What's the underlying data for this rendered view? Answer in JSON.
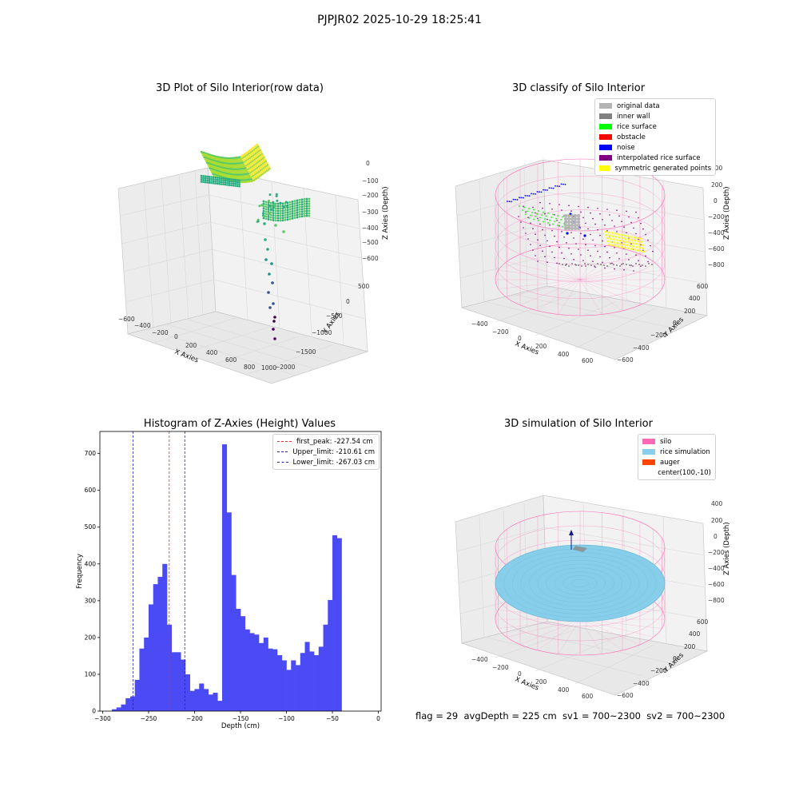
{
  "suptitle": "PJPJR02 2025-10-29 18:25:41",
  "footer": "flag = 29  avgDepth = 225 cm  sv1 = 700~2300  sv2 = 700~2300",
  "colors": {
    "hist_bar": "#4b4bf5",
    "first_peak": "#e03030",
    "limits": "#2020b0",
    "silo": "#ff69b4",
    "rice_simulation": "#87ceeb",
    "auger": "#ff4500"
  },
  "chart_data": [
    {
      "type": "scatter3d",
      "title": "3D Plot of Silo Interior(row data)",
      "xlabel": "X Axies",
      "ylabel": "Y Axies",
      "zlabel": "Z Axies (Depth)",
      "xticks": [
        "−600",
        "−400",
        "−200",
        "0",
        "200",
        "400",
        "600",
        "800",
        "1000"
      ],
      "yticks": [
        "−2000",
        "−1500",
        "−1000",
        "−500",
        "0",
        "500"
      ],
      "zticks": [
        "0",
        "−100",
        "−200",
        "−300",
        "−400",
        "−500",
        "−600"
      ],
      "colormap": "viridis"
    },
    {
      "type": "scatter3d",
      "title": "3D classify of Silo Interior",
      "xlabel": "X Axies",
      "ylabel": "Y Axies",
      "zlabel": "Z Axies (Depth)",
      "xticks": [
        "−400",
        "−200",
        "0",
        "200",
        "400",
        "600"
      ],
      "yticks": [
        "−600",
        "−400",
        "−200",
        "0",
        "200",
        "400",
        "600"
      ],
      "zticks": [
        "400",
        "200",
        "0",
        "−200",
        "−400",
        "−600",
        "−800"
      ],
      "legend": [
        {
          "label": "original data",
          "color": "#b4b4b4"
        },
        {
          "label": "inner wall",
          "color": "#808080"
        },
        {
          "label": "rice surface",
          "color": "#00ff00"
        },
        {
          "label": "obstacle",
          "color": "#ff0000"
        },
        {
          "label": "noise",
          "color": "#0000ff"
        },
        {
          "label": "interpolated rice surface",
          "color": "#800080"
        },
        {
          "label": "symmetric generated points",
          "color": "#ffff00"
        }
      ]
    },
    {
      "type": "bar",
      "title": "Histogram of Z-Axies (Height) Values",
      "xlabel": "Depth (cm)",
      "ylabel": "Frequency",
      "xlim": [
        -303,
        3
      ],
      "ylim": [
        0,
        760
      ],
      "xticks": [
        -300,
        -250,
        -200,
        -150,
        -100,
        -50,
        0
      ],
      "yticks": [
        0,
        100,
        200,
        300,
        400,
        500,
        600,
        700
      ],
      "bin_start": -290,
      "bin_width": 5,
      "values": [
        5,
        10,
        18,
        35,
        40,
        85,
        170,
        200,
        290,
        345,
        365,
        400,
        235,
        160,
        160,
        140,
        100,
        55,
        60,
        75,
        60,
        45,
        50,
        28,
        725,
        540,
        370,
        278,
        258,
        222,
        212,
        208,
        185,
        200,
        170,
        168,
        152,
        138,
        112,
        138,
        125,
        158,
        188,
        162,
        152,
        175,
        235,
        302,
        478,
        470
      ],
      "vlines": [
        {
          "label": "first_peak: -227.54 cm",
          "x": -227.54,
          "color": "#e03030"
        },
        {
          "label": "Upper_limit: -210.61 cm",
          "x": -210.61,
          "color": "#2020b0"
        },
        {
          "label": "Lower_limit: -267.03 cm",
          "x": -267.03,
          "color": "#2020b0"
        }
      ]
    },
    {
      "type": "surface3d",
      "title": "3D simulation of Silo Interior",
      "xlabel": "X Axies",
      "ylabel": "Y Axies",
      "zlabel": "Z Axies (Depth)",
      "xticks": [
        "−400",
        "−200",
        "0",
        "200",
        "400",
        "600"
      ],
      "yticks": [
        "−600",
        "−400",
        "−200",
        "0",
        "200",
        "400",
        "600"
      ],
      "zticks": [
        "400",
        "200",
        "0",
        "−200",
        "−400",
        "−600",
        "−800"
      ],
      "legend": [
        {
          "label": "silo",
          "color": "#ff69b4"
        },
        {
          "label": "rice simulation",
          "color": "#87ceeb"
        },
        {
          "label": "auger",
          "color": "#ff4500"
        },
        {
          "label": "center(100,-10)",
          "color": ""
        }
      ]
    }
  ]
}
